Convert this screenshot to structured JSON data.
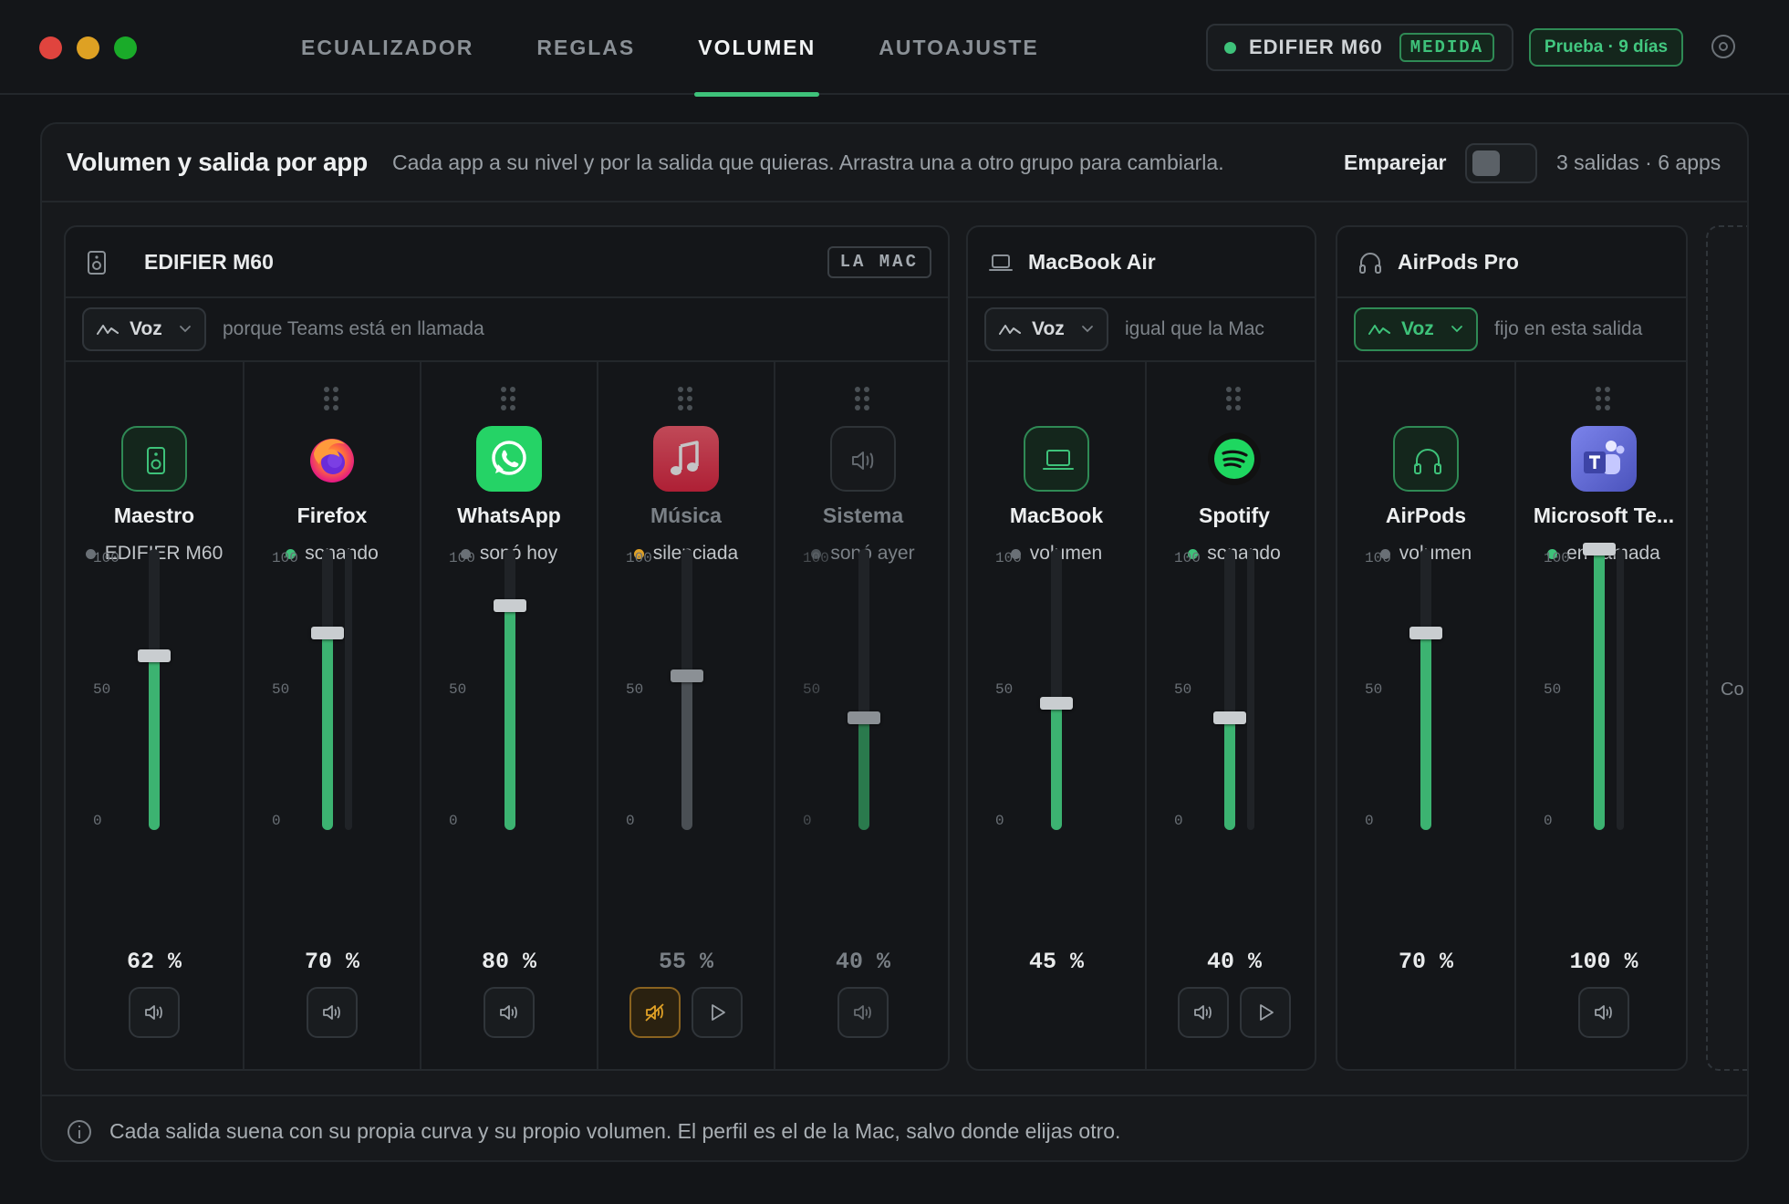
{
  "window": {
    "traffic_colors": [
      "#e0443e",
      "#dea123",
      "#1aab29"
    ]
  },
  "tabs": [
    {
      "label": "ECUALIZADOR",
      "active": false
    },
    {
      "label": "REGLAS",
      "active": false
    },
    {
      "label": "VOLUMEN",
      "active": true
    },
    {
      "label": "AUTOAJUSTE",
      "active": false
    }
  ],
  "header": {
    "device_name": "EDIFIER M60",
    "device_badge": "MEDIDA",
    "trial": "Prueba · 9 días",
    "settings_icon": "settings-icon"
  },
  "main": {
    "title": "Volumen y salida por app",
    "subtitle": "Cada app a su nivel y por la salida que quieras. Arrastra una a otro grupo para cambiarla.",
    "pair_label": "Emparejar",
    "pair_on": false,
    "summary": "3 salidas · 6 apps",
    "new_group_label": "Co A"
  },
  "groups": [
    {
      "name": "EDIFIER M60",
      "icon": "speaker-icon",
      "tag": "LA MAC",
      "profile": "Voz",
      "profile_highlight": false,
      "note": "porque Teams está en llamada",
      "strips": [
        {
          "name": "Maestro",
          "icon": "speaker-icon",
          "status": "EDIFIER M60",
          "status_color": "#6a7076",
          "value": 62,
          "pct": "62 %",
          "meter": null,
          "muted": false,
          "dim": false,
          "buttons": [
            "volume-icon"
          ],
          "draggable": false
        },
        {
          "name": "Firefox",
          "icon": "firefox-icon",
          "status": "sonando",
          "status_color": "#3ec27a",
          "value": 70,
          "pct": "70 %",
          "meter": 0,
          "muted": false,
          "dim": false,
          "buttons": [
            "volume-icon"
          ],
          "draggable": true
        },
        {
          "name": "WhatsApp",
          "icon": "whatsapp-icon",
          "status": "sonó hoy",
          "status_color": "#6a7076",
          "value": 80,
          "pct": "80 %",
          "meter": null,
          "muted": false,
          "dim": false,
          "buttons": [
            "volume-icon"
          ],
          "draggable": true
        },
        {
          "name": "Música",
          "icon": "music-icon",
          "status": "silenciada",
          "status_color": "#e0a126",
          "value": 55,
          "pct": "55 %",
          "meter": null,
          "muted": true,
          "dim": true,
          "buttons": [
            "muted-icon",
            "play-icon"
          ],
          "draggable": true
        },
        {
          "name": "Sistema",
          "icon": "volume-icon",
          "status": "sonó ayer",
          "status_color": "#4a5055",
          "value": 40,
          "pct": "40 %",
          "meter": null,
          "muted": false,
          "dim": true,
          "buttons": [
            "volume-icon"
          ],
          "draggable": true
        }
      ]
    },
    {
      "name": "MacBook Air",
      "icon": "laptop-icon",
      "tag": "",
      "profile": "Voz",
      "profile_highlight": false,
      "note": "igual que la Mac",
      "strips": [
        {
          "name": "MacBook",
          "icon": "laptop-icon",
          "status": "volumen",
          "status_color": "#6a7076",
          "value": 45,
          "pct": "45 %",
          "meter": null,
          "muted": false,
          "dim": false,
          "buttons": [],
          "draggable": false
        },
        {
          "name": "Spotify",
          "icon": "spotify-icon",
          "status": "sonando",
          "status_color": "#3ec27a",
          "value": 40,
          "pct": "40 %",
          "meter": 0,
          "muted": false,
          "dim": false,
          "buttons": [
            "volume-icon",
            "play-icon"
          ],
          "draggable": true
        }
      ]
    },
    {
      "name": "AirPods Pro",
      "icon": "headphones-icon",
      "tag": "",
      "profile": "Voz",
      "profile_highlight": true,
      "note": "fijo en esta salida",
      "strips": [
        {
          "name": "AirPods",
          "icon": "headphones-icon",
          "status": "volumen",
          "status_color": "#6a7076",
          "value": 70,
          "pct": "70 %",
          "meter": null,
          "muted": false,
          "dim": false,
          "buttons": [],
          "draggable": false
        },
        {
          "name": "Microsoft Te...",
          "icon": "teams-icon",
          "status": "en llamada",
          "status_color": "#3ec27a",
          "value": 100,
          "pct": "100 %",
          "meter": 0,
          "muted": false,
          "dim": false,
          "buttons": [
            "volume-icon"
          ],
          "draggable": true
        }
      ]
    }
  ],
  "scale_labels": [
    "100",
    "50",
    "0"
  ],
  "footer": {
    "text": "Cada salida suena con su propia curva y su propio volumen. El perfil es el de la Mac, salvo donde elijas otro."
  }
}
